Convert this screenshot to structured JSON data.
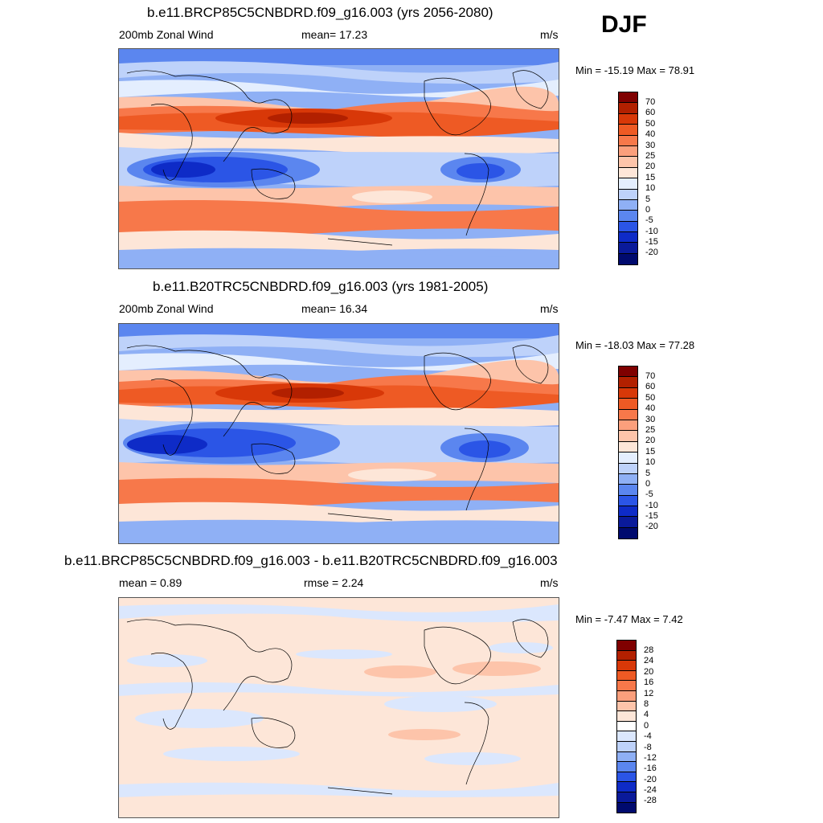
{
  "season": "DJF",
  "panels": [
    {
      "title": "b.e11.BRCP85C5CNBDRD.f09_g16.003 (yrs 2056-2080)",
      "left_label": "200mb Zonal Wind",
      "center_label": "mean=  17.23",
      "units": "m/s",
      "minmax": "Min = -15.19 Max =  78.91",
      "colorbar_labels": [
        "70",
        "60",
        "50",
        "40",
        "30",
        "25",
        "20",
        "15",
        "10",
        "5",
        "0",
        "-5",
        "-10",
        "-15",
        "-20"
      ]
    },
    {
      "title": "b.e11.B20TRC5CNBDRD.f09_g16.003 (yrs 1981-2005)",
      "left_label": "200mb Zonal Wind",
      "center_label": "mean=  16.34",
      "units": "m/s",
      "minmax": "Min = -18.03 Max =  77.28",
      "colorbar_labels": [
        "70",
        "60",
        "50",
        "40",
        "30",
        "25",
        "20",
        "15",
        "10",
        "5",
        "0",
        "-5",
        "-10",
        "-15",
        "-20"
      ]
    },
    {
      "title": "b.e11.BRCP85C5CNBDRD.f09_g16.003 - b.e11.B20TRC5CNBDRD.f09_g16.003",
      "left_label": "mean =   0.89",
      "center_label": "rmse =   2.24",
      "units": "m/s",
      "minmax": "Min =  -7.47 Max =   7.42",
      "colorbar_labels": [
        "28",
        "24",
        "20",
        "16",
        "12",
        "8",
        "4",
        "0",
        "-4",
        "-8",
        "-12",
        "-16",
        "-20",
        "-24",
        "-28"
      ]
    }
  ],
  "colors": {
    "field_scale": [
      "#7f0000",
      "#b22000",
      "#d83808",
      "#ee5a24",
      "#f7784a",
      "#fb9f7c",
      "#fdc4aa",
      "#fde6d8",
      "#e4eefe",
      "#bed2fa",
      "#8fb0f5",
      "#5b86ef",
      "#2b55e6",
      "#0e2bc7",
      "#0a1a9a",
      "#000a6e"
    ],
    "diff_scale": [
      "#7f0000",
      "#b22000",
      "#d83808",
      "#ee5a24",
      "#f7784a",
      "#fb9f7c",
      "#fdc4aa",
      "#fde6d8",
      "#ffffff",
      "#dbe7fd",
      "#bed2fa",
      "#8fb0f5",
      "#5b86ef",
      "#2b55e6",
      "#0e2bc7",
      "#0a1a9a",
      "#000a6e"
    ]
  }
}
